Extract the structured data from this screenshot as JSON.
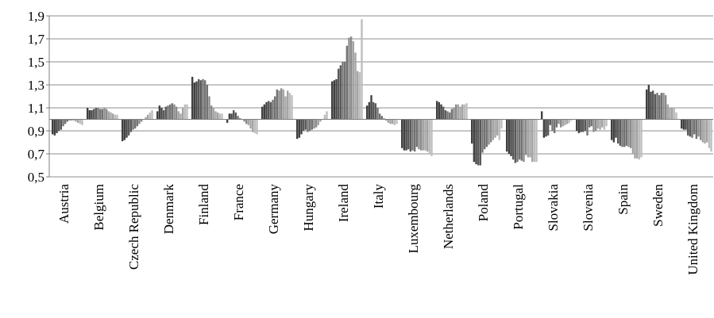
{
  "chart_data": {
    "type": "bar",
    "ylim": [
      0.5,
      1.9
    ],
    "baseline": 1.0,
    "yticks": [
      "0,5",
      "0,7",
      "0,9",
      "1,1",
      "1,3",
      "1,5",
      "1,7",
      "1,9"
    ],
    "ytick_values": [
      0.5,
      0.7,
      0.9,
      1.1,
      1.3,
      1.5,
      1.7,
      1.9
    ],
    "grid": true,
    "legend": "none",
    "bar_colors": [
      "#404040",
      "#595959",
      "#727272",
      "#8b8b8b",
      "#a4a4a4",
      "#bdbdbd"
    ],
    "categories": [
      {
        "name": "Austria",
        "values": [
          0.87,
          0.86,
          0.88,
          0.9,
          0.91,
          0.94,
          0.96,
          0.98,
          0.99,
          0.99,
          0.99,
          0.98,
          0.97,
          0.96,
          0.95
        ]
      },
      {
        "name": "Belgium",
        "values": [
          1.1,
          1.08,
          1.08,
          1.09,
          1.1,
          1.1,
          1.09,
          1.09,
          1.1,
          1.09,
          1.07,
          1.06,
          1.05,
          1.04,
          1.04
        ]
      },
      {
        "name": "Czech Republic",
        "values": [
          0.81,
          0.82,
          0.84,
          0.86,
          0.89,
          0.91,
          0.92,
          0.94,
          0.96,
          0.98,
          1.0,
          1.02,
          1.04,
          1.06,
          1.08
        ]
      },
      {
        "name": "Denmark",
        "values": [
          1.07,
          1.12,
          1.1,
          1.08,
          1.11,
          1.12,
          1.13,
          1.14,
          1.13,
          1.11,
          1.07,
          1.05,
          1.1,
          1.13,
          1.13
        ]
      },
      {
        "name": "Finland",
        "values": [
          1.37,
          1.32,
          1.33,
          1.35,
          1.34,
          1.35,
          1.34,
          1.3,
          1.2,
          1.12,
          1.1,
          1.07,
          1.06,
          1.05,
          1.05
        ]
      },
      {
        "name": "France",
        "values": [
          0.97,
          1.05,
          1.05,
          1.08,
          1.06,
          1.03,
          1.01,
          1.0,
          0.98,
          0.96,
          0.95,
          0.92,
          0.89,
          0.88,
          0.87
        ]
      },
      {
        "name": "Germany",
        "values": [
          1.11,
          1.13,
          1.15,
          1.16,
          1.15,
          1.17,
          1.2,
          1.26,
          1.25,
          1.27,
          1.26,
          1.2,
          1.25,
          1.23,
          1.21
        ]
      },
      {
        "name": "Hungary",
        "values": [
          0.83,
          0.84,
          0.87,
          0.9,
          0.91,
          0.89,
          0.9,
          0.91,
          0.92,
          0.93,
          0.95,
          0.98,
          1.0,
          1.04,
          1.07
        ]
      },
      {
        "name": "Ireland",
        "values": [
          1.33,
          1.34,
          1.35,
          1.44,
          1.47,
          1.5,
          1.5,
          1.64,
          1.71,
          1.72,
          1.68,
          1.58,
          1.42,
          1.41,
          1.87
        ]
      },
      {
        "name": "Italy",
        "values": [
          1.12,
          1.15,
          1.21,
          1.15,
          1.14,
          1.1,
          1.05,
          1.03,
          1.01,
          0.99,
          0.97,
          0.96,
          0.96,
          0.95,
          0.96
        ]
      },
      {
        "name": "Luxembourg",
        "values": [
          0.75,
          0.73,
          0.73,
          0.74,
          0.72,
          0.73,
          0.72,
          0.76,
          0.74,
          0.73,
          0.73,
          0.73,
          0.72,
          0.7,
          0.68
        ]
      },
      {
        "name": "Netherlands",
        "values": [
          1.16,
          1.15,
          1.13,
          1.11,
          1.08,
          1.07,
          1.06,
          1.09,
          1.1,
          1.13,
          1.13,
          1.11,
          1.13,
          1.13,
          1.14
        ]
      },
      {
        "name": "Poland",
        "values": [
          0.79,
          0.63,
          0.61,
          0.6,
          0.6,
          0.71,
          0.74,
          0.76,
          0.78,
          0.8,
          0.82,
          0.84,
          0.86,
          0.82,
          0.92
        ]
      },
      {
        "name": "Portugal",
        "values": [
          0.72,
          0.7,
          0.68,
          0.65,
          0.62,
          0.63,
          0.65,
          0.64,
          0.63,
          0.69,
          0.67,
          0.67,
          0.63,
          0.63,
          0.63
        ]
      },
      {
        "name": "Slovakia",
        "values": [
          1.07,
          0.84,
          0.85,
          0.86,
          0.95,
          0.9,
          0.88,
          0.93,
          0.96,
          0.93,
          0.94,
          0.95,
          0.96,
          0.97,
          0.99
        ]
      },
      {
        "name": "Slovenia",
        "values": [
          0.9,
          0.88,
          0.89,
          0.89,
          0.9,
          0.86,
          0.93,
          0.94,
          0.89,
          0.9,
          0.92,
          0.91,
          0.93,
          0.91,
          0.94
        ]
      },
      {
        "name": "Spain",
        "values": [
          0.82,
          0.8,
          0.84,
          0.79,
          0.77,
          0.76,
          0.76,
          0.77,
          0.76,
          0.75,
          0.7,
          0.66,
          0.66,
          0.65,
          0.67
        ]
      },
      {
        "name": "Sweden",
        "values": [
          1.26,
          1.3,
          1.24,
          1.25,
          1.22,
          1.23,
          1.21,
          1.23,
          1.23,
          1.21,
          1.13,
          1.1,
          1.1,
          1.1,
          1.06
        ]
      },
      {
        "name": "United Kingdom",
        "values": [
          0.92,
          0.91,
          0.91,
          0.86,
          0.85,
          0.84,
          0.87,
          0.83,
          0.85,
          0.82,
          0.8,
          0.79,
          0.8,
          0.75,
          0.72
        ]
      }
    ]
  }
}
